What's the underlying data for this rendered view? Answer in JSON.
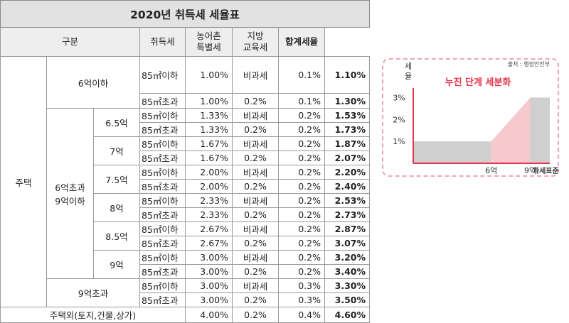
{
  "title": "2020년 취득세 세율표",
  "headers": {
    "category": "구분",
    "acq_tax": "취득세",
    "rural_tax": [
      "농어촌",
      "특별세"
    ],
    "edu_tax": [
      "지방",
      "교육세"
    ],
    "total_rate": "합계세율"
  },
  "labels": {
    "housing": "주택",
    "under6": "6억이하",
    "six_to_nine": [
      "6억초과",
      "9억이하"
    ],
    "over9": "9억초과",
    "non_housing": "주택외(토지,건물,상가)",
    "area_small": "85㎡이하",
    "area_large": "85㎡초과"
  },
  "tiers": [
    "6.5억",
    "7억",
    "7.5억",
    "8억",
    "8.5억",
    "9억"
  ],
  "rows": [
    {
      "acq": "1.00%",
      "rural": "비과세",
      "edu": "0.1%",
      "total": "1.10%"
    },
    {
      "acq": "1.00%",
      "rural": "0.2%",
      "edu": "0.1%",
      "total": "1.30%"
    },
    {
      "acq": "1.33%",
      "rural": "비과세",
      "edu": "0.2%",
      "total": "1.53%"
    },
    {
      "acq": "1.33%",
      "rural": "0.2%",
      "edu": "0.2%",
      "total": "1.73%"
    },
    {
      "acq": "1.67%",
      "rural": "비과세",
      "edu": "0.2%",
      "total": "1.87%"
    },
    {
      "acq": "1.67%",
      "rural": "0.2%",
      "edu": "0.2%",
      "total": "2.07%"
    },
    {
      "acq": "2.00%",
      "rural": "비과세",
      "edu": "0.2%",
      "total": "2.20%"
    },
    {
      "acq": "2.00%",
      "rural": "0.2%",
      "edu": "0.2%",
      "total": "2.40%"
    },
    {
      "acq": "2.33%",
      "rural": "비과세",
      "edu": "0.2%",
      "total": "2.53%"
    },
    {
      "acq": "2.33%",
      "rural": "0.2%",
      "edu": "0.2%",
      "total": "2.73%"
    },
    {
      "acq": "2.67%",
      "rural": "비과세",
      "edu": "0.2%",
      "total": "2.87%"
    },
    {
      "acq": "2.67%",
      "rural": "0.2%",
      "edu": "0.2%",
      "total": "3.07%"
    },
    {
      "acq": "3.00%",
      "rural": "비과세",
      "edu": "0.2%",
      "total": "3.20%"
    },
    {
      "acq": "3.00%",
      "rural": "0.2%",
      "edu": "0.2%",
      "total": "3.40%"
    },
    {
      "acq": "3.00%",
      "rural": "비과세",
      "edu": "0.3%",
      "total": "3.30%"
    },
    {
      "acq": "3.00%",
      "rural": "0.2%",
      "edu": "0.3%",
      "total": "3.50%"
    },
    {
      "acq": "4.00%",
      "rural": "0.2%",
      "edu": "0.4%",
      "total": "4.60%"
    }
  ],
  "infographic": {
    "source": "출처 : 행정안전부",
    "title": "누진 단계 세분화",
    "ylabel": [
      "세",
      "율"
    ],
    "ytick_labels": [
      "3%",
      "2%",
      "1%"
    ],
    "xtick_labels": [
      "6억",
      "9억",
      "과세표준"
    ],
    "colors": {
      "accent": "#e8334a",
      "gray_fill": "#cfcfcf",
      "pink_fill": "#f6c9cf",
      "border": "#f2a5b3"
    },
    "chart_data": {
      "type": "area",
      "x": [
        0,
        6,
        9,
        10.5
      ],
      "y": [
        1,
        1,
        3,
        3
      ],
      "xlim": [
        0,
        10.5
      ],
      "ylim": [
        0,
        3.5
      ],
      "grid": false
    }
  }
}
